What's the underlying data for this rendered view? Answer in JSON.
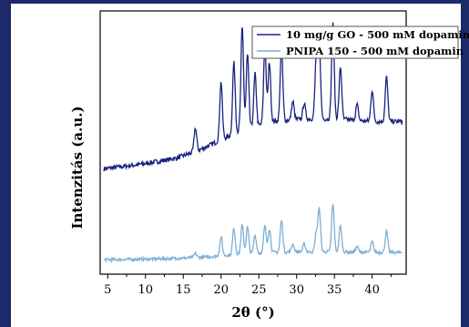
{
  "chart_data": {
    "type": "line",
    "title": "",
    "xlabel": "2θ (°)",
    "ylabel": "Intenzitás (a.u.)",
    "xlim": [
      4,
      44.5
    ],
    "x_ticks": [
      5,
      10,
      15,
      20,
      25,
      30,
      35,
      40
    ],
    "y_ticks_shown": false,
    "legend_position": "top-right",
    "series": [
      {
        "name": "10 mg/g GO - 500 mM dopamin",
        "color": "#1a237e",
        "baseline": [
          [
            4.5,
            0.4
          ],
          [
            10,
            0.42
          ],
          [
            14,
            0.44
          ],
          [
            17,
            0.47
          ],
          [
            20,
            0.51
          ],
          [
            23,
            0.55
          ],
          [
            27,
            0.58
          ],
          [
            31,
            0.59
          ],
          [
            35,
            0.59
          ],
          [
            40,
            0.58
          ],
          [
            44,
            0.58
          ]
        ],
        "peaks": [
          [
            16.6,
            0.09
          ],
          [
            20.0,
            0.22
          ],
          [
            21.7,
            0.27
          ],
          [
            22.8,
            0.39
          ],
          [
            23.5,
            0.28
          ],
          [
            24.5,
            0.2
          ],
          [
            25.8,
            0.29
          ],
          [
            26.4,
            0.23
          ],
          [
            28.0,
            0.28
          ],
          [
            29.5,
            0.07
          ],
          [
            31.0,
            0.06
          ],
          [
            32.6,
            0.23
          ],
          [
            33.0,
            0.28
          ],
          [
            34.8,
            0.36
          ],
          [
            35.8,
            0.2
          ],
          [
            38.0,
            0.06
          ],
          [
            40.0,
            0.12
          ],
          [
            41.9,
            0.17
          ]
        ]
      },
      {
        "name": "PNIPA 150 - 500 mM dopamin",
        "color": "#7db0d6",
        "baseline": [
          [
            4.5,
            0.055
          ],
          [
            10,
            0.057
          ],
          [
            14,
            0.06
          ],
          [
            18,
            0.065
          ],
          [
            22,
            0.075
          ],
          [
            26,
            0.082
          ],
          [
            30,
            0.085
          ],
          [
            35,
            0.085
          ],
          [
            40,
            0.083
          ],
          [
            44,
            0.082
          ]
        ],
        "peaks": [
          [
            16.6,
            0.015
          ],
          [
            20.0,
            0.07
          ],
          [
            21.7,
            0.1
          ],
          [
            22.8,
            0.11
          ],
          [
            23.5,
            0.1
          ],
          [
            24.5,
            0.07
          ],
          [
            25.8,
            0.1
          ],
          [
            26.4,
            0.09
          ],
          [
            28.0,
            0.12
          ],
          [
            29.5,
            0.03
          ],
          [
            31.0,
            0.03
          ],
          [
            32.6,
            0.07
          ],
          [
            33.0,
            0.16
          ],
          [
            34.8,
            0.18
          ],
          [
            35.8,
            0.1
          ],
          [
            38.0,
            0.02
          ],
          [
            40.0,
            0.04
          ],
          [
            41.9,
            0.08
          ]
        ]
      }
    ]
  }
}
